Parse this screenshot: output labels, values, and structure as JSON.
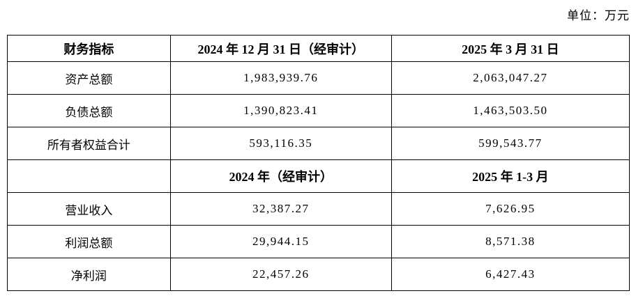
{
  "unit_note": "单位：万元",
  "table": {
    "sections": [
      {
        "header": {
          "col1": "财务指标",
          "col2": "2024 年 12 月 31 日（经审计）",
          "col3": "2025 年 3 月 31 日"
        },
        "rows": [
          {
            "label": "资产总额",
            "col2": "1,983,939.76",
            "col3": "2,063,047.27"
          },
          {
            "label": "负债总额",
            "col2": "1,390,823.41",
            "col3": "1,463,503.50"
          },
          {
            "label": "所有者权益合计",
            "col2": "593,116.35",
            "col3": "599,543.77"
          }
        ]
      },
      {
        "header": {
          "col1": "",
          "col2": "2024 年（经审计）",
          "col3": "2025 年 1-3 月"
        },
        "rows": [
          {
            "label": "营业收入",
            "col2": "32,387.27",
            "col3": "7,626.95"
          },
          {
            "label": "利润总额",
            "col2": "29,944.15",
            "col3": "8,571.38"
          },
          {
            "label": "净利润",
            "col2": "22,457.26",
            "col3": "6,427.43"
          }
        ]
      }
    ]
  }
}
